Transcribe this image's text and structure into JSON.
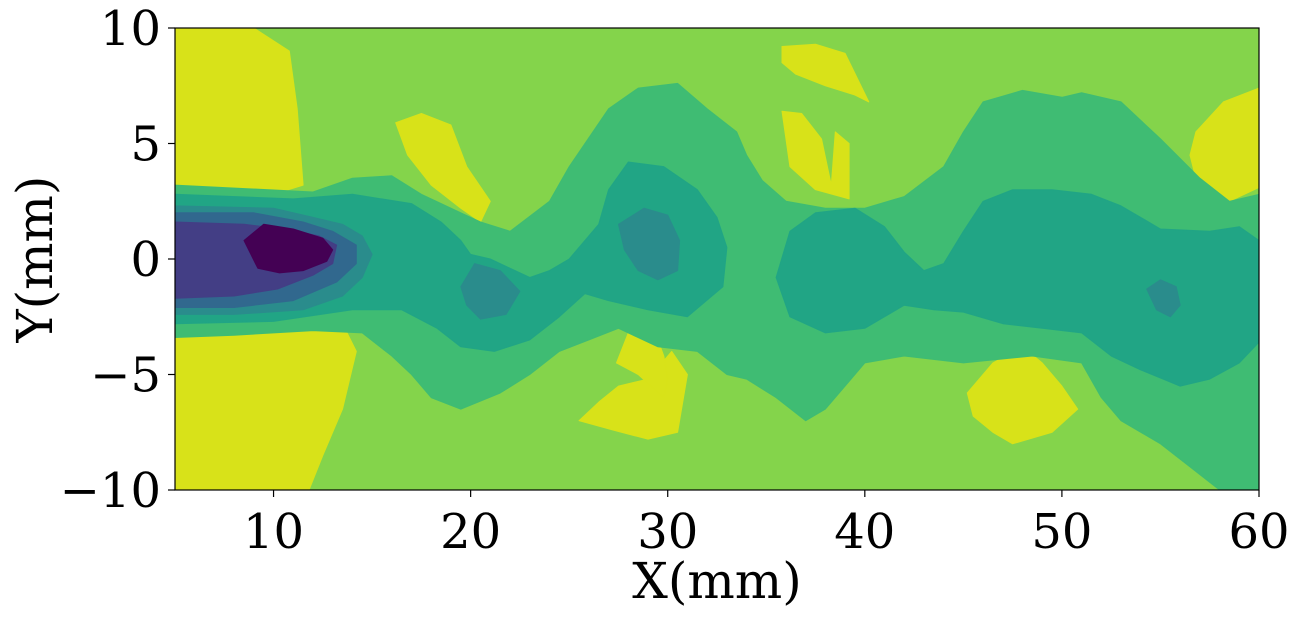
{
  "chart_data": {
    "type": "contour",
    "title": "",
    "xlabel": "X(mm)",
    "ylabel": "Y(mm)",
    "xlim": [
      5,
      60
    ],
    "ylim": [
      -10,
      10
    ],
    "x_ticks": [
      10,
      20,
      30,
      40,
      50,
      60
    ],
    "x_tick_labels": [
      "10",
      "20",
      "30",
      "40",
      "50",
      "60"
    ],
    "y_ticks": [
      -10,
      -5,
      0,
      5,
      10
    ],
    "y_tick_labels": [
      "−10",
      "−5",
      "0",
      "5",
      "10"
    ],
    "grid": false,
    "legend": "none",
    "colormap": "viridis",
    "levels": [
      {
        "level": 0,
        "color": "#440154"
      },
      {
        "level": 1,
        "color": "#433e85"
      },
      {
        "level": 2,
        "color": "#31688e"
      },
      {
        "level": 3,
        "color": "#2a8c8c"
      },
      {
        "level": 4,
        "color": "#21a585"
      },
      {
        "level": 5,
        "color": "#3fbc73"
      },
      {
        "level": 6,
        "color": "#84d44b"
      },
      {
        "level": 7,
        "color": "#d8e219"
      }
    ],
    "background_level": 6,
    "regions": [
      {
        "level": 7,
        "points": [
          [
            5,
            10
          ],
          [
            9,
            10
          ],
          [
            10.8,
            9
          ],
          [
            11.2,
            6.5
          ],
          [
            11.5,
            3.2
          ],
          [
            10,
            2.8
          ],
          [
            7,
            3
          ],
          [
            5,
            3
          ]
        ]
      },
      {
        "level": 7,
        "points": [
          [
            5,
            -3.2
          ],
          [
            8,
            -3.2
          ],
          [
            11,
            -3
          ],
          [
            13.5,
            -2.8
          ],
          [
            14.2,
            -4
          ],
          [
            13.5,
            -6.5
          ],
          [
            12.5,
            -8.5
          ],
          [
            11.8,
            -10
          ],
          [
            5,
            -10
          ]
        ]
      },
      {
        "level": 7,
        "points": [
          [
            16.2,
            5.9
          ],
          [
            17.5,
            6.3
          ],
          [
            19,
            5.8
          ],
          [
            19.8,
            4
          ],
          [
            21,
            2.5
          ],
          [
            20.5,
            1.6
          ],
          [
            19.5,
            2.2
          ],
          [
            18,
            3.2
          ],
          [
            16.8,
            4.5
          ]
        ]
      },
      {
        "level": 7,
        "points": [
          [
            35.8,
            9.2
          ],
          [
            37.5,
            9.3
          ],
          [
            39,
            8.9
          ],
          [
            40.2,
            6.8
          ],
          [
            39.5,
            7.1
          ],
          [
            38,
            7.5
          ],
          [
            36.5,
            8
          ],
          [
            35.8,
            8.5
          ]
        ]
      },
      {
        "level": 7,
        "points": [
          [
            35.8,
            6.4
          ],
          [
            36.8,
            6.3
          ],
          [
            37.8,
            5.2
          ],
          [
            38.3,
            3.2
          ],
          [
            38.5,
            5.5
          ],
          [
            39.2,
            5
          ],
          [
            39.2,
            2.6
          ],
          [
            37.5,
            3
          ],
          [
            36.2,
            4
          ]
        ]
      },
      {
        "level": 7,
        "points": [
          [
            27.5,
            -5.5
          ],
          [
            29,
            -5.2
          ],
          [
            30.2,
            -4
          ],
          [
            31,
            -5
          ],
          [
            30.5,
            -7.5
          ],
          [
            29,
            -7.8
          ],
          [
            27.2,
            -7.4
          ],
          [
            25.5,
            -7
          ],
          [
            26.5,
            -6.2
          ]
        ]
      },
      {
        "level": 7,
        "points": [
          [
            27.4,
            -4.5
          ],
          [
            28.5,
            -5
          ],
          [
            29.8,
            -6
          ],
          [
            30,
            -5.2
          ],
          [
            29.8,
            -4.2
          ],
          [
            29.5,
            -3.5
          ],
          [
            28,
            -3.2
          ]
        ]
      },
      {
        "level": 7,
        "points": [
          [
            45.2,
            -5.8
          ],
          [
            46.5,
            -4.5
          ],
          [
            48,
            -3.8
          ],
          [
            49,
            -4.5
          ],
          [
            50,
            -5.5
          ],
          [
            50.8,
            -6.5
          ],
          [
            49.5,
            -7.5
          ],
          [
            47.5,
            -8
          ],
          [
            46.5,
            -7.5
          ],
          [
            45.5,
            -6.8
          ]
        ]
      },
      {
        "level": 7,
        "points": [
          [
            56.8,
            5.5
          ],
          [
            58.2,
            6.8
          ],
          [
            60,
            7.4
          ],
          [
            60,
            3.1
          ],
          [
            58.5,
            2.5
          ],
          [
            57,
            2.8
          ],
          [
            56.5,
            4.5
          ]
        ]
      },
      {
        "level": 5,
        "points": [
          [
            5,
            3.2
          ],
          [
            12,
            2.9
          ],
          [
            14,
            3.5
          ],
          [
            16,
            3.6
          ],
          [
            17.5,
            2.8
          ],
          [
            19.5,
            2
          ],
          [
            20.5,
            1.6
          ],
          [
            22,
            1.2
          ],
          [
            24,
            2.5
          ],
          [
            25,
            4
          ],
          [
            27,
            6.5
          ],
          [
            28.5,
            7.4
          ],
          [
            30.5,
            7.6
          ],
          [
            32,
            6.5
          ],
          [
            33.5,
            5.5
          ],
          [
            34,
            4.5
          ],
          [
            34.8,
            3.4
          ],
          [
            36,
            2.5
          ],
          [
            38,
            2.2
          ],
          [
            40,
            2.2
          ],
          [
            42,
            2.7
          ],
          [
            44,
            4
          ],
          [
            45,
            5.5
          ],
          [
            46,
            6.8
          ],
          [
            48,
            7.3
          ],
          [
            50,
            7
          ],
          [
            51,
            7.2
          ],
          [
            53,
            6.8
          ],
          [
            55,
            5.2
          ],
          [
            57,
            3.5
          ],
          [
            58.5,
            2.5
          ],
          [
            60,
            2.8
          ],
          [
            60,
            -3.5
          ],
          [
            60,
            -10
          ],
          [
            58,
            -10
          ],
          [
            56.5,
            -9
          ],
          [
            55,
            -8
          ],
          [
            53,
            -7
          ],
          [
            52,
            -6
          ],
          [
            51,
            -4.5
          ],
          [
            48.5,
            -4.2
          ],
          [
            45,
            -4.5
          ],
          [
            42,
            -4.2
          ],
          [
            40,
            -4.5
          ],
          [
            39,
            -5.5
          ],
          [
            38,
            -6.5
          ],
          [
            37,
            -7
          ],
          [
            35.5,
            -6
          ],
          [
            34,
            -5.2
          ],
          [
            33,
            -5
          ],
          [
            31.5,
            -4
          ],
          [
            29.5,
            -3.8
          ],
          [
            27.5,
            -3
          ],
          [
            26,
            -3.5
          ],
          [
            24.5,
            -4
          ],
          [
            23,
            -5
          ],
          [
            21.5,
            -5.8
          ],
          [
            19.5,
            -6.5
          ],
          [
            18,
            -6
          ],
          [
            17,
            -5
          ],
          [
            16,
            -4.2
          ],
          [
            14.5,
            -3.2
          ],
          [
            12,
            -3.1
          ],
          [
            8,
            -3.3
          ],
          [
            5,
            -3.4
          ]
        ]
      },
      {
        "level": 4,
        "points": [
          [
            5,
            2.8
          ],
          [
            11,
            2.6
          ],
          [
            14,
            2.8
          ],
          [
            17,
            2.4
          ],
          [
            18.5,
            1.6
          ],
          [
            19.5,
            0.8
          ],
          [
            20,
            0.2
          ],
          [
            21,
            0
          ],
          [
            23,
            -0.8
          ],
          [
            24,
            -0.5
          ],
          [
            25,
            0
          ],
          [
            26.5,
            1.5
          ],
          [
            27,
            3
          ],
          [
            28,
            4.2
          ],
          [
            29.8,
            4
          ],
          [
            31.5,
            3
          ],
          [
            32.5,
            1.8
          ],
          [
            33,
            0.5
          ],
          [
            32.8,
            -1.2
          ],
          [
            31,
            -2.5
          ],
          [
            29,
            -2.2
          ],
          [
            27,
            -1.8
          ],
          [
            25.8,
            -1.5
          ],
          [
            24.5,
            -2.5
          ],
          [
            23,
            -3.5
          ],
          [
            21.2,
            -4
          ],
          [
            19.5,
            -3.8
          ],
          [
            18.3,
            -3
          ],
          [
            16.5,
            -2.2
          ],
          [
            14,
            -2.2
          ],
          [
            10,
            -2.7
          ],
          [
            5,
            -2.8
          ]
        ]
      },
      {
        "level": 4,
        "points": [
          [
            35.5,
            -0.8
          ],
          [
            36.2,
            1.2
          ],
          [
            37.5,
            2
          ],
          [
            39.5,
            2.2
          ],
          [
            41,
            1.4
          ],
          [
            42,
            0.3
          ],
          [
            43,
            -0.5
          ],
          [
            44,
            -0.2
          ],
          [
            45,
            1.2
          ],
          [
            46,
            2.5
          ],
          [
            47.5,
            3
          ],
          [
            49.5,
            3
          ],
          [
            51.5,
            2.8
          ],
          [
            53,
            2.3
          ],
          [
            55,
            1.3
          ],
          [
            57.5,
            1.2
          ],
          [
            59,
            1.4
          ],
          [
            60,
            0.8
          ],
          [
            60,
            -3.6
          ],
          [
            59,
            -4.5
          ],
          [
            57.5,
            -5.2
          ],
          [
            56,
            -5.5
          ],
          [
            54,
            -4.8
          ],
          [
            52.5,
            -4.2
          ],
          [
            51,
            -3.2
          ],
          [
            49,
            -3
          ],
          [
            47,
            -2.8
          ],
          [
            45,
            -2.3
          ],
          [
            43.5,
            -2.2
          ],
          [
            42,
            -2
          ],
          [
            40,
            -3
          ],
          [
            38,
            -3.2
          ],
          [
            36.2,
            -2.5
          ]
        ]
      },
      {
        "level": 3,
        "points": [
          [
            27.5,
            1.5
          ],
          [
            28.8,
            2.2
          ],
          [
            30,
            1.9
          ],
          [
            30.6,
            0.8
          ],
          [
            30.5,
            -0.5
          ],
          [
            29.5,
            -0.9
          ],
          [
            28.5,
            -0.5
          ],
          [
            27.8,
            0.4
          ]
        ]
      },
      {
        "level": 3,
        "points": [
          [
            19.5,
            -1.2
          ],
          [
            20.2,
            -0.2
          ],
          [
            21.5,
            -0.5
          ],
          [
            22.5,
            -1.4
          ],
          [
            21.8,
            -2.4
          ],
          [
            20.5,
            -2.6
          ],
          [
            19.8,
            -2
          ]
        ]
      },
      {
        "level": 3,
        "points": [
          [
            54.3,
            -1.3
          ],
          [
            55,
            -0.9
          ],
          [
            55.8,
            -1.2
          ],
          [
            56,
            -2
          ],
          [
            55.5,
            -2.5
          ],
          [
            54.8,
            -2.2
          ]
        ]
      },
      {
        "level": 3,
        "points": [
          [
            5,
            2.3
          ],
          [
            10,
            2.2
          ],
          [
            12,
            1.8
          ],
          [
            13.5,
            1.5
          ],
          [
            14.5,
            1
          ],
          [
            15,
            0.2
          ],
          [
            14.5,
            -0.8
          ],
          [
            13.5,
            -1.6
          ],
          [
            11.5,
            -2.2
          ],
          [
            8,
            -2.4
          ],
          [
            5,
            -2.4
          ]
        ]
      },
      {
        "level": 2,
        "points": [
          [
            5,
            2
          ],
          [
            9,
            2
          ],
          [
            11.5,
            1.6
          ],
          [
            13,
            1.2
          ],
          [
            14.2,
            0.6
          ],
          [
            14.2,
            -0.2
          ],
          [
            13.2,
            -1
          ],
          [
            11,
            -1.8
          ],
          [
            8,
            -2.1
          ],
          [
            5,
            -2.1
          ]
        ]
      },
      {
        "level": 1,
        "points": [
          [
            5,
            1.6
          ],
          [
            8.5,
            1.5
          ],
          [
            10.5,
            1.3
          ],
          [
            12.3,
            1
          ],
          [
            13.2,
            0.6
          ],
          [
            13,
            -0.2
          ],
          [
            12,
            -0.7
          ],
          [
            10.2,
            -1.3
          ],
          [
            8,
            -1.6
          ],
          [
            5,
            -1.7
          ]
        ]
      },
      {
        "level": 0,
        "points": [
          [
            8.5,
            0.8
          ],
          [
            9.5,
            1.5
          ],
          [
            11,
            1.3
          ],
          [
            12.5,
            0.9
          ],
          [
            13,
            0.4
          ],
          [
            12.7,
            -0.1
          ],
          [
            11.5,
            -0.5
          ],
          [
            10.3,
            -0.6
          ],
          [
            9.2,
            -0.4
          ]
        ]
      }
    ]
  }
}
